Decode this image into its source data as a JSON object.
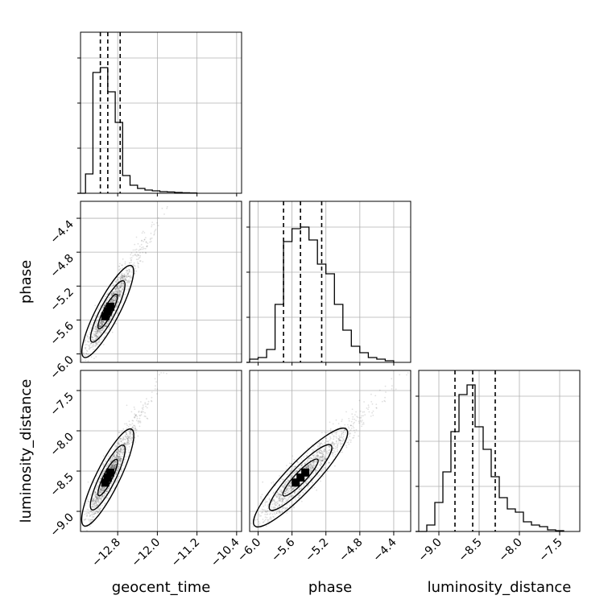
{
  "chart_data": {
    "type": "corner",
    "parameters": [
      "geocent_time",
      "phase",
      "luminosity_distance"
    ],
    "axis_labels": {
      "x": [
        "geocent_time",
        "phase",
        "luminosity_distance"
      ],
      "y": [
        "phase",
        "luminosity_distance"
      ]
    },
    "tick_labels": {
      "geocent_time": [
        "−12.8",
        "−12.0",
        "−11.2",
        "−10.4"
      ],
      "phase": [
        "−6.0",
        "−5.6",
        "−5.2",
        "−4.8",
        "−4.4"
      ],
      "luminosity_distance_x": [
        "−9.0",
        "−8.5",
        "−8.0",
        "−7.5"
      ],
      "luminosity_distance_y": [
        "−9.0",
        "−8.5",
        "−8.0",
        "−7.5"
      ]
    },
    "ranges": {
      "geocent_time": [
        -13.55,
        -10.3
      ],
      "phase": [
        -6.1,
        -4.2
      ],
      "luminosity_distance": [
        -9.25,
        -7.25
      ]
    },
    "ticks": {
      "geocent_time": [
        -12.8,
        -12.0,
        -11.2,
        -10.4
      ],
      "phase": [
        -6.0,
        -5.6,
        -5.2,
        -4.8,
        -4.4
      ],
      "luminosity_distance": [
        -9.0,
        -8.5,
        -8.0,
        -7.5
      ]
    },
    "quantiles": {
      "geocent_time": [
        -13.15,
        -13.0,
        -12.75
      ],
      "phase": [
        -5.7,
        -5.5,
        -5.25
      ],
      "luminosity_distance": [
        -8.8,
        -8.58,
        -8.3
      ]
    },
    "histograms": {
      "geocent_time": {
        "edges": [
          -13.45,
          -13.3,
          -13.15,
          -13.0,
          -12.85,
          -12.7,
          -12.55,
          -12.4,
          -12.25,
          -12.1,
          -11.95,
          -11.8,
          -11.65,
          -11.5,
          -11.35,
          -11.2
        ],
        "counts": [
          0.12,
          0.75,
          0.78,
          0.63,
          0.44,
          0.11,
          0.05,
          0.03,
          0.02,
          0.015,
          0.01,
          0.008,
          0.005,
          0.003,
          0.002
        ]
      },
      "phase": {
        "edges": [
          -6.1,
          -6.0,
          -5.9,
          -5.8,
          -5.7,
          -5.6,
          -5.5,
          -5.4,
          -5.3,
          -5.2,
          -5.1,
          -5.0,
          -4.9,
          -4.8,
          -4.7,
          -4.6,
          -4.5,
          -4.4
        ],
        "counts": [
          0.02,
          0.03,
          0.08,
          0.36,
          0.75,
          0.83,
          0.84,
          0.76,
          0.61,
          0.55,
          0.36,
          0.2,
          0.1,
          0.06,
          0.03,
          0.02,
          0.01
        ]
      },
      "luminosity_distance": {
        "edges": [
          -9.15,
          -9.05,
          -8.95,
          -8.85,
          -8.75,
          -8.65,
          -8.55,
          -8.45,
          -8.35,
          -8.25,
          -8.15,
          -8.05,
          -7.95,
          -7.85,
          -7.75,
          -7.65,
          -7.55,
          -7.45
        ],
        "counts": [
          0.04,
          0.18,
          0.37,
          0.62,
          0.85,
          0.91,
          0.65,
          0.51,
          0.34,
          0.21,
          0.14,
          0.12,
          0.06,
          0.04,
          0.03,
          0.01,
          0.005
        ]
      }
    },
    "grid": true,
    "scatter_color": "#555555",
    "contour_fill": "#444444"
  }
}
